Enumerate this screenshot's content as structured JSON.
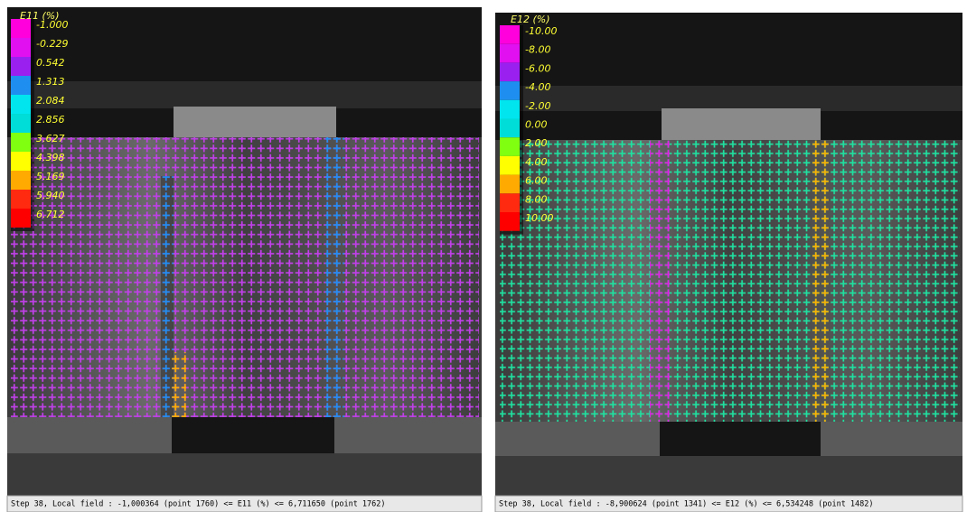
{
  "panels": [
    {
      "legend": {
        "title": "E11 (%)",
        "labels": [
          "-1.000",
          "-0.229",
          "0.542",
          "1.313",
          "2.084",
          "2.856",
          "3.627",
          "4.398",
          "5.169",
          "5.940",
          "6.712"
        ]
      },
      "status": "Step 38, Local field : -1,000364 (point 1760) <= E11 (%) <= 6,711650 (point 1762)"
    },
    {
      "legend": {
        "title": "E12 (%)",
        "labels": [
          "-10.00",
          "-8.00",
          "-6.00",
          "-4.00",
          "-2.00",
          "0.00",
          "2.00",
          "4.00",
          "6.00",
          "8.00",
          "10.00"
        ]
      },
      "status": "Step 38, Local field : -8,900624 (point 1341) <= E12 (%) <= 6,534248 (point 1482)"
    }
  ]
}
